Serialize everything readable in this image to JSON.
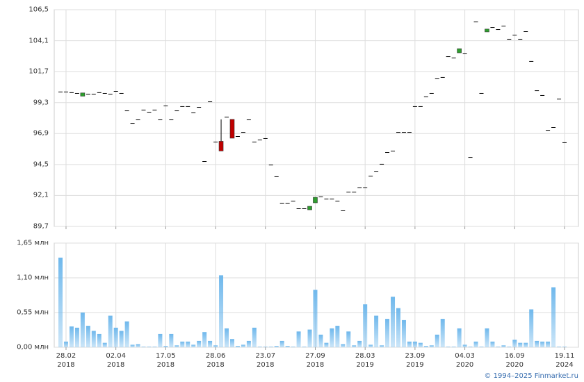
{
  "chart_data": [
    {
      "type": "candlestick",
      "categories": [
        null,
        "28.02\n2018",
        null,
        null,
        null,
        null,
        null,
        null,
        null,
        null,
        "02.04\n2018",
        null,
        null,
        null,
        null,
        null,
        null,
        null,
        null,
        "17.05\n2018",
        null,
        null,
        null,
        null,
        null,
        null,
        null,
        null,
        "28.06\n2018",
        null,
        null,
        null,
        null,
        null,
        null,
        null,
        null,
        "23.07\n2018",
        null,
        null,
        null,
        null,
        null,
        null,
        null,
        null,
        "27.09\n2018",
        null,
        null,
        null,
        null,
        null,
        null,
        null,
        null,
        "28.03\n2019",
        null,
        null,
        null,
        null,
        null,
        null,
        null,
        null,
        "23.09\n2019",
        null,
        null,
        null,
        null,
        null,
        null,
        null,
        null,
        "04.03\n2020",
        null,
        null,
        null,
        null,
        null,
        null,
        null,
        null,
        "16.09\n2020",
        null,
        null,
        null,
        null,
        null,
        null,
        null,
        null,
        "19.11\n2024"
      ],
      "open": [
        100.15,
        100.15,
        100.1,
        100.04,
        99.8,
        99.98,
        99.98,
        100.1,
        100.04,
        99.98,
        100.2,
        100.04,
        98.69,
        97.72,
        97.99,
        98.75,
        98.58,
        98.75,
        97.99,
        99.07,
        97.99,
        98.69,
        99.02,
        99.02,
        98.53,
        98.96,
        94.76,
        99.39,
        96.27,
        96.3,
        98.2,
        98.0,
        96.7,
        97.02,
        97.99,
        96.27,
        96.43,
        96.54,
        94.49,
        93.58,
        91.53,
        91.53,
        91.69,
        91.1,
        91.1,
        90.99,
        91.53,
        92.02,
        91.85,
        91.85,
        91.69,
        90.94,
        92.39,
        92.39,
        92.72,
        92.72,
        93.63,
        94.0,
        94.55,
        95.46,
        95.57,
        97.02,
        97.02,
        97.02,
        99.02,
        99.02,
        99.77,
        100.04,
        101.17,
        101.28,
        102.89,
        102.79,
        103.16,
        103.11,
        95.08,
        105.58,
        100.04,
        104.78,
        105.15,
        104.99,
        105.26,
        104.24,
        104.56,
        104.24,
        104.83,
        102.52,
        100.25,
        99.88,
        97.18,
        97.4,
        99.6,
        96.22
      ],
      "high": [
        100.15,
        100.15,
        100.1,
        100.04,
        100.05,
        99.98,
        99.98,
        100.1,
        100.04,
        99.98,
        100.2,
        100.04,
        98.69,
        97.72,
        97.99,
        98.75,
        98.58,
        98.75,
        97.99,
        99.07,
        97.99,
        98.69,
        99.02,
        99.02,
        98.53,
        98.96,
        94.76,
        99.39,
        96.27,
        98.0,
        98.2,
        98.0,
        96.7,
        97.02,
        97.99,
        96.27,
        96.43,
        96.54,
        94.49,
        93.58,
        91.53,
        91.53,
        91.69,
        91.1,
        91.1,
        91.26,
        91.96,
        92.02,
        91.85,
        91.85,
        91.69,
        90.94,
        92.39,
        92.39,
        92.72,
        92.72,
        93.63,
        94.0,
        94.55,
        95.46,
        95.57,
        97.02,
        97.02,
        97.02,
        99.02,
        99.02,
        99.77,
        100.04,
        101.17,
        101.28,
        102.89,
        102.79,
        103.48,
        103.11,
        95.08,
        105.58,
        100.04,
        105.0,
        105.15,
        104.99,
        105.26,
        104.24,
        104.56,
        104.24,
        104.83,
        102.52,
        100.25,
        99.88,
        97.18,
        97.4,
        99.6,
        96.22
      ],
      "low": [
        100.15,
        100.15,
        100.1,
        100.04,
        99.8,
        99.98,
        99.98,
        100.1,
        100.04,
        99.98,
        100.2,
        100.04,
        98.69,
        97.72,
        97.99,
        98.75,
        98.58,
        98.75,
        97.99,
        99.07,
        97.99,
        98.69,
        99.02,
        99.02,
        98.53,
        98.96,
        94.76,
        99.39,
        96.27,
        95.55,
        98.2,
        96.54,
        96.7,
        97.02,
        97.99,
        96.27,
        96.43,
        96.54,
        94.49,
        93.58,
        91.53,
        91.53,
        91.69,
        91.1,
        91.1,
        90.99,
        91.53,
        92.02,
        91.85,
        91.85,
        91.69,
        90.94,
        92.39,
        92.39,
        92.72,
        92.72,
        93.63,
        94.0,
        94.55,
        95.46,
        95.57,
        97.02,
        97.02,
        97.02,
        99.02,
        99.02,
        99.77,
        100.04,
        101.17,
        101.28,
        102.89,
        102.79,
        103.16,
        103.11,
        95.08,
        105.58,
        100.04,
        104.78,
        105.15,
        104.99,
        105.26,
        104.24,
        104.56,
        104.24,
        104.83,
        102.52,
        100.25,
        99.88,
        97.18,
        97.4,
        99.6,
        96.22
      ],
      "close": [
        100.15,
        100.15,
        100.1,
        100.04,
        100.05,
        99.98,
        99.98,
        100.1,
        100.04,
        99.98,
        100.2,
        100.04,
        98.69,
        97.72,
        97.99,
        98.75,
        98.58,
        98.75,
        97.99,
        99.07,
        97.99,
        98.69,
        99.02,
        99.02,
        98.53,
        98.96,
        94.76,
        99.39,
        96.27,
        95.55,
        98.2,
        96.54,
        96.7,
        97.02,
        97.99,
        96.27,
        96.43,
        96.54,
        94.49,
        93.58,
        91.53,
        91.53,
        91.69,
        91.1,
        91.1,
        91.26,
        91.96,
        92.02,
        91.85,
        91.85,
        91.69,
        90.94,
        92.39,
        92.39,
        92.72,
        92.72,
        93.63,
        94.0,
        94.55,
        95.46,
        95.57,
        97.02,
        97.02,
        97.02,
        99.02,
        99.02,
        99.77,
        100.04,
        101.17,
        101.28,
        102.89,
        102.79,
        103.48,
        103.11,
        95.08,
        105.58,
        100.04,
        105.0,
        105.15,
        104.99,
        105.26,
        104.24,
        104.56,
        104.24,
        104.83,
        102.52,
        100.25,
        99.88,
        97.18,
        97.4,
        99.6,
        96.22
      ],
      "up_color": "#2e9e2e",
      "down_color": "#c00000",
      "flat_color": "#000000",
      "ylim": [
        89.7,
        106.5
      ],
      "yticks": [
        {
          "value": 89.7,
          "label": "89,7"
        },
        {
          "value": 92.1,
          "label": "92,1"
        },
        {
          "value": 94.5,
          "label": "94,5"
        },
        {
          "value": 96.9,
          "label": "96,9"
        },
        {
          "value": 99.3,
          "label": "99,3"
        },
        {
          "value": 101.7,
          "label": "101,7"
        },
        {
          "value": 104.1,
          "label": "104,1"
        },
        {
          "value": 106.5,
          "label": "106,5"
        }
      ],
      "grid": true
    },
    {
      "type": "bar",
      "values": [
        1.42,
        0.09,
        0.33,
        0.31,
        0.55,
        0.34,
        0.26,
        0.21,
        0.07,
        0.5,
        0.31,
        0.26,
        0.41,
        0.04,
        0.05,
        0.01,
        0.01,
        0.01,
        0.21,
        0.02,
        0.21,
        0.03,
        0.09,
        0.09,
        0.04,
        0.1,
        0.24,
        0.1,
        0.03,
        1.14,
        0.3,
        0.13,
        0.02,
        0.04,
        0.1,
        0.31,
        0.01,
        0.01,
        0.01,
        0.02,
        0.1,
        0.02,
        0.01,
        0.25,
        0.01,
        0.28,
        0.91,
        0.2,
        0.07,
        0.3,
        0.34,
        0.05,
        0.25,
        0.03,
        0.1,
        0.68,
        0.04,
        0.5,
        0.03,
        0.45,
        0.8,
        0.62,
        0.43,
        0.09,
        0.09,
        0.07,
        0.02,
        0.03,
        0.2,
        0.45,
        0.01,
        0.01,
        0.3,
        0.04,
        0.01,
        0.09,
        0.01,
        0.3,
        0.09,
        0.01,
        0.03,
        0.01,
        0.12,
        0.07,
        0.07,
        0.6,
        0.1,
        0.09,
        0.09,
        0.95,
        0.01,
        0.01
      ],
      "color": "#6fb8ec",
      "ylim": [
        0,
        1.65
      ],
      "yticks": [
        {
          "value": 0,
          "label": "0,00 млн"
        },
        {
          "value": 0.55,
          "label": "0,55 млн"
        },
        {
          "value": 1.1,
          "label": "1,10 млн"
        },
        {
          "value": 1.65,
          "label": "1,65 млн"
        }
      ],
      "grid": true
    }
  ],
  "credit": "© 1994–2025 Finmarket.ru"
}
